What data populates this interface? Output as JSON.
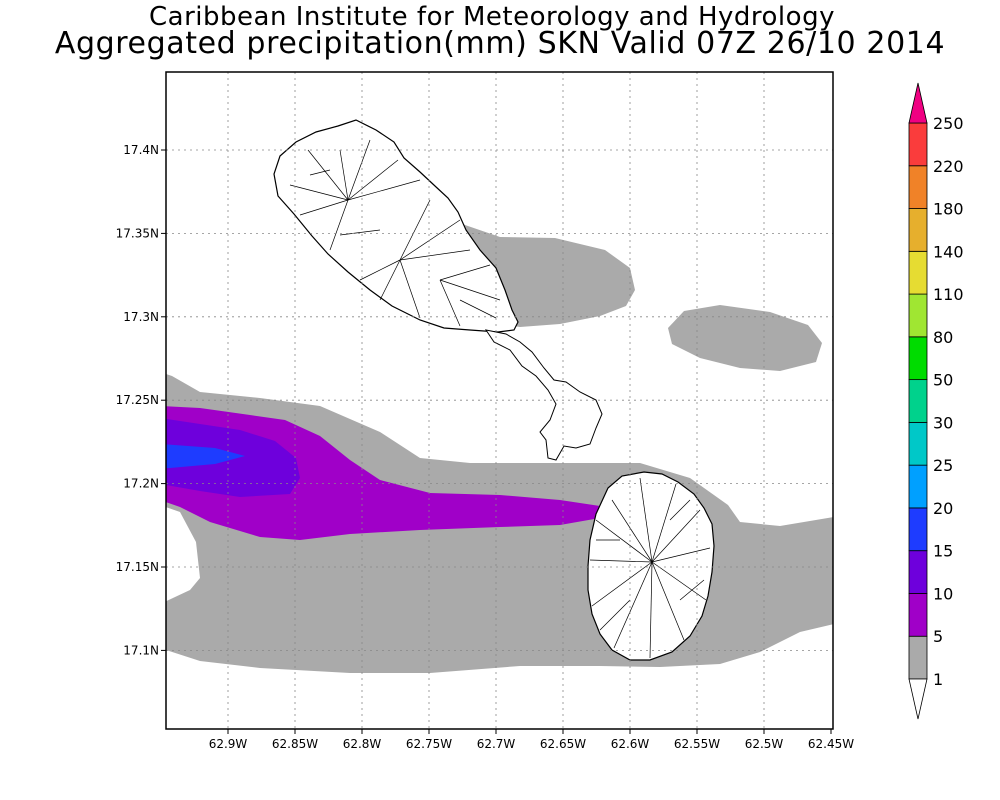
{
  "title": {
    "line1": "Caribbean Institute for Meteorology and Hydrology",
    "line2": "Aggregated precipitation(mm) SKN Valid 07Z 26/10 2014"
  },
  "axes": {
    "x_ticks": [
      "62.9W",
      "62.85W",
      "62.8W",
      "62.75W",
      "62.7W",
      "62.65W",
      "62.6W",
      "62.55W",
      "62.5W",
      "62.45W"
    ],
    "y_ticks": [
      "17.4N",
      "17.35N",
      "17.3N",
      "17.25N",
      "17.2N",
      "17.15N",
      "17.1N"
    ]
  },
  "colorbar": {
    "levels": [
      "1",
      "5",
      "10",
      "15",
      "20",
      "25",
      "30",
      "50",
      "80",
      "110",
      "140",
      "180",
      "220",
      "250"
    ],
    "colors": [
      "#aaaaaa",
      "#a000c8",
      "#6e00dc",
      "#1e3cff",
      "#00a0ff",
      "#00c8c8",
      "#00d28c",
      "#00dc00",
      "#a0e632",
      "#e6dc32",
      "#e6af2d",
      "#f08228",
      "#fa3c3c",
      "#f00082"
    ]
  },
  "map": {
    "islands": [
      "St. Kitts",
      "Nevis"
    ],
    "precip_colors": {
      "band_1_5": "#aaaaaa",
      "band_5_10": "#a000c8",
      "band_10_15": "#6e00dc",
      "band_15_20": "#1e3cff"
    }
  }
}
